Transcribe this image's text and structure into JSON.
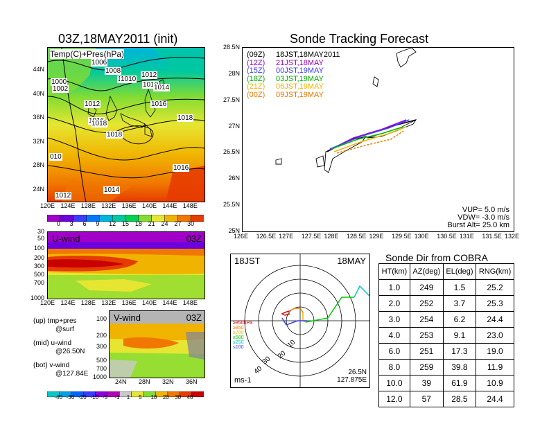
{
  "left": {
    "title": "03Z,18MAY2011 (init)",
    "temp_panel": {
      "label": "Temp(C)+Pres(hPa)",
      "lat_ticks": [
        "44N",
        "40N",
        "36N",
        "32N",
        "28N",
        "24N"
      ],
      "lon_ticks": [
        "120E",
        "124E",
        "128E",
        "132E",
        "136E",
        "140E",
        "144E",
        "148E"
      ],
      "isobar_labels": [
        "1006",
        "1008",
        "1010",
        "1000",
        "1002",
        "1012",
        "1010",
        "1014",
        "1012",
        "1016",
        "1016",
        "1018",
        "1018",
        "1010",
        "1018",
        "1016",
        "1014",
        "1012",
        "010"
      ],
      "colorbar_ticks": [
        "0",
        "3",
        "6",
        "9",
        "12",
        "15",
        "18",
        "21",
        "24",
        "27",
        "30"
      ],
      "colorbar_colors": [
        "#a000c8",
        "#6e00dc",
        "#3c3cff",
        "#0078ff",
        "#00b4dc",
        "#00c8a0",
        "#00d250",
        "#82dc32",
        "#e6e632",
        "#f0b400",
        "#f07800",
        "#e63c00"
      ]
    },
    "u_panel": {
      "label": "U-wind",
      "time": "03Z",
      "p_ticks": [
        "30",
        "50",
        "100",
        "200",
        "300",
        "500",
        "700",
        "1000"
      ],
      "lon_ticks": [
        "120E",
        "124E",
        "128E",
        "132E",
        "136E",
        "140E",
        "144E",
        "148E"
      ]
    },
    "v_panel": {
      "label": "V-wind",
      "time": "03Z",
      "p_ticks": [
        "100",
        "200",
        "300",
        "500",
        "700",
        "1000"
      ],
      "lat_ticks": [
        "24N",
        "28N",
        "32N",
        "36N"
      ]
    },
    "notes": [
      {
        "a": "(up) tmp+pres",
        "b": "@surf"
      },
      {
        "a": "(mid) u-wind",
        "b": "@26.50N"
      },
      {
        "a": "(bot) v-wind",
        "b": "@127.84E"
      }
    ],
    "wind_colorbar_ticks": [
      "-40",
      "-30",
      "-20",
      "-10",
      "-5",
      "-1",
      "1",
      "5",
      "10",
      "20",
      "30",
      "40"
    ],
    "wind_colorbar_colors": [
      "#00c8c8",
      "#00a0e6",
      "#0064ff",
      "#3c3cff",
      "#8c00dc",
      "#b400b4",
      "#c8c8c8",
      "#e6e632",
      "#82dc32",
      "#f0b400",
      "#f07800",
      "#e63c00",
      "#c80000"
    ]
  },
  "track": {
    "title": "Sonde Tracking Forecast",
    "lat_ticks": [
      "28.5N",
      "28N",
      "27.5N",
      "27N",
      "26.5N",
      "26N",
      "25.5N",
      "25N"
    ],
    "lon_ticks": [
      "126E",
      "126.5E",
      "127E",
      "127.5E",
      "128E",
      "128.5E",
      "129E",
      "129.5E",
      "130E",
      "130.5E",
      "131E",
      "131.5E",
      "132E"
    ],
    "legend": [
      {
        "code": "(09Z)",
        "time": "18JST,18MAY2011",
        "color": "#000000"
      },
      {
        "code": "(12Z)",
        "time": "21JST,18MAY",
        "color": "#a000c8"
      },
      {
        "code": "(15Z)",
        "time": "00JST,19MAY",
        "color": "#3c3cff"
      },
      {
        "code": "(18Z)",
        "time": "03JST,19MAY",
        "color": "#00b400"
      },
      {
        "code": "(21Z)",
        "time": "06JST,19MAY",
        "color": "#f0b400"
      },
      {
        "code": "(00Z)",
        "time": "09JST,19MAY",
        "color": "#f07800"
      }
    ],
    "params": [
      "VUP= 5.0 m/s",
      "VDW= -3.0 m/s",
      "Burst Alt= 25.0 km"
    ]
  },
  "polar": {
    "time": "18JST",
    "date": "18MAY",
    "ring_labels": [
      "10",
      "20",
      "30",
      "40"
    ],
    "level_legend": [
      {
        "text": "≥850hPa",
        "color": "#e60000"
      },
      {
        "text": "≥850",
        "color": "#f07800"
      },
      {
        "text": "≥700",
        "color": "#f0b400"
      },
      {
        "text": "≤500",
        "color": "#00c800"
      },
      {
        "text": "≤250",
        "color": "#00c8c8"
      },
      {
        "text": "≤100",
        "color": "#3c3cff"
      }
    ],
    "unit": "ms-1",
    "loc_lat": "26.5N",
    "loc_lon": "127.875E"
  },
  "sonde_dir": {
    "title": "Sonde Dir from COBRA",
    "headers": [
      "HT(km)",
      "AZ(deg)",
      "EL(deg)",
      "RNG(km)"
    ],
    "rows": [
      [
        "1.0",
        "249",
        "1.5",
        "25.2"
      ],
      [
        "2.0",
        "252",
        "3.7",
        "25.3"
      ],
      [
        "3.0",
        "254",
        "6.2",
        "24.4"
      ],
      [
        "4.0",
        "253",
        "9.1",
        "23.0"
      ],
      [
        "6.0",
        "251",
        "17.3",
        "19.0"
      ],
      [
        "8.0",
        "259",
        "39.8",
        "11.9"
      ],
      [
        "10.0",
        "39",
        "61.9",
        "10.9"
      ],
      [
        "12.0",
        "57",
        "28.5",
        "24.4"
      ]
    ]
  }
}
